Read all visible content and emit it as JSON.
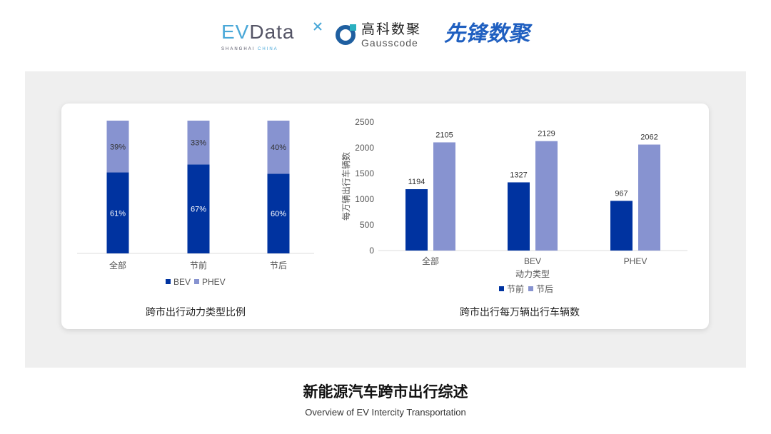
{
  "logos": {
    "evdata": "EVData",
    "evdata_sub": "SHANGHAI CHINA",
    "gauss_cn": "高科数聚",
    "gauss_en": "Gausscode",
    "xianfeng": "先锋数聚"
  },
  "colors": {
    "dark": "#0033a0",
    "light": "#8793d0",
    "panel": "#efefef"
  },
  "chart_data": [
    {
      "type": "bar",
      "stacked": true,
      "percent": true,
      "title": "跨市出行动力类型比例",
      "categories": [
        "全部",
        "节前",
        "节后"
      ],
      "series": [
        {
          "name": "BEV",
          "values": [
            61,
            67,
            60
          ]
        },
        {
          "name": "PHEV",
          "values": [
            39,
            33,
            40
          ]
        }
      ],
      "legend": "bottom",
      "grid": false
    },
    {
      "type": "bar",
      "title": "跨市出行每万辆出行车辆数",
      "xlabel": "动力类型",
      "ylabel": "每万辆出行车辆数",
      "categories": [
        "全部",
        "BEV",
        "PHEV"
      ],
      "ylim": [
        0,
        2500
      ],
      "yticks": [
        0,
        500,
        1000,
        1500,
        2000,
        2500
      ],
      "series": [
        {
          "name": "节前",
          "values": [
            1194,
            1327,
            967
          ]
        },
        {
          "name": "节后",
          "values": [
            2105,
            2129,
            2062
          ]
        }
      ],
      "legend": "bottom",
      "grid": false
    }
  ],
  "footer": {
    "title": "新能源汽车跨市出行综述",
    "subtitle": "Overview of EV Intercity Transportation"
  }
}
